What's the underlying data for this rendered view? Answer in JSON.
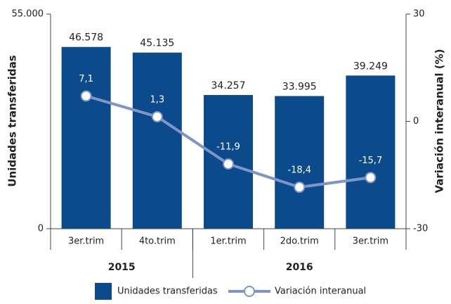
{
  "chart_data": {
    "type": "bar_line",
    "categories": [
      "3er.trim",
      "4to.trim",
      "1er.trim",
      "2do.trim",
      "3er.trim"
    ],
    "groups": [
      {
        "name": "2015",
        "count": 2
      },
      {
        "name": "2016",
        "count": 3
      }
    ],
    "series": [
      {
        "name": "Unidades transferidas",
        "type": "bar",
        "color": "#0b4a8b",
        "values": [
          46578,
          45135,
          34257,
          33995,
          39249
        ],
        "value_labels": [
          "46.578",
          "45.135",
          "34.257",
          "33.995",
          "39.249"
        ]
      },
      {
        "name": "Variación interanual",
        "type": "line",
        "axis": "y2",
        "color": "#7f95c8",
        "values": [
          7.1,
          1.3,
          -11.9,
          -18.4,
          -15.7
        ],
        "value_labels": [
          "7,1",
          "1,3",
          "-11,9",
          "-18,4",
          "-15,7"
        ]
      }
    ],
    "ylabel": "Unidades transferidas",
    "y2label": "Variación interanual (%)",
    "ylim": [
      0,
      55000
    ],
    "yticks": [
      0,
      {
        "value": 55000,
        "label": "55.000"
      }
    ],
    "y2lim": [
      -30,
      30
    ],
    "y2ticks": [
      -30,
      0,
      30
    ]
  }
}
